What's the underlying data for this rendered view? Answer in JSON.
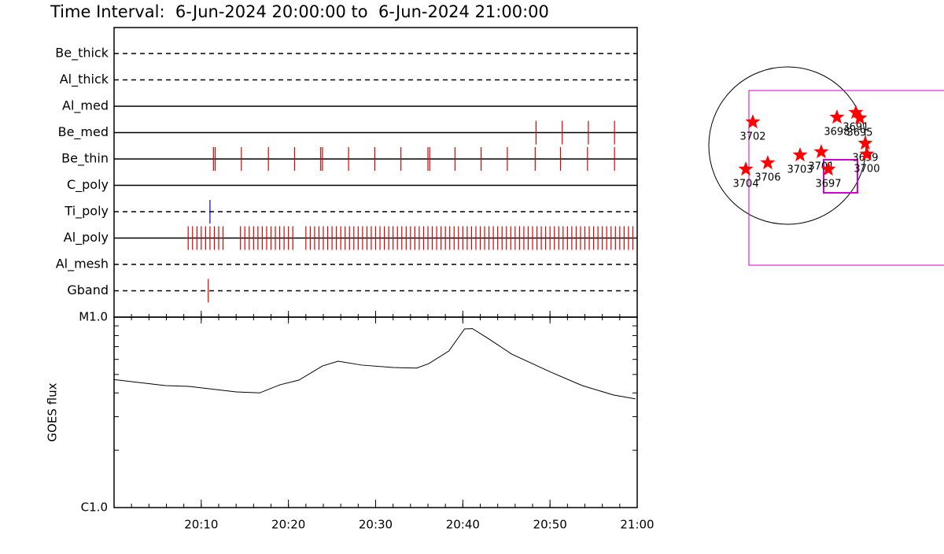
{
  "chart_data": [
    {
      "type": "event",
      "title": "Time Interval:  6-Jun-2024 20:00:00 to  6-Jun-2024 21:00:00",
      "xlim": [
        0,
        60
      ],
      "rows": [
        {
          "name": "Be_thick",
          "style": "dashed",
          "color": "#e00000",
          "events": []
        },
        {
          "name": "Al_thick",
          "style": "dashed",
          "color": "#e00000",
          "events": []
        },
        {
          "name": "Al_med",
          "style": "solid",
          "color": "#e00000",
          "events": []
        },
        {
          "name": "Be_med",
          "style": "solid",
          "color": "#e00000",
          "events": [
            48.4,
            51.4,
            54.4,
            57.4
          ]
        },
        {
          "name": "Be_thin",
          "style": "solid",
          "color": "#e00000",
          "events": [
            11.4,
            11.6,
            14.6,
            17.7,
            20.7,
            23.7,
            23.9,
            26.9,
            29.9,
            32.9,
            36.0,
            36.2,
            39.1,
            42.1,
            45.1,
            48.3,
            51.2,
            54.3,
            57.4
          ]
        },
        {
          "name": "C_poly",
          "style": "solid",
          "color": "#e00000",
          "events": []
        },
        {
          "name": "Ti_poly",
          "style": "dashed",
          "color": "#0000cc",
          "events": [
            11.0
          ]
        },
        {
          "name": "Al_poly",
          "style": "solid",
          "color": "#e00000",
          "events": [
            8.5,
            9,
            9.5,
            10,
            10.5,
            11,
            11.5,
            12,
            12.5,
            14.5,
            15,
            15.5,
            16,
            16.5,
            17,
            17.5,
            18,
            18.5,
            19,
            19.5,
            20,
            20.5,
            22,
            22.5,
            23,
            23.5,
            24,
            24.5,
            25,
            25.5,
            26,
            26.5,
            27,
            27.5,
            28,
            28.5,
            29,
            29.5,
            30,
            30.5,
            31,
            31.5,
            32,
            32.5,
            33,
            33.5,
            34,
            34.5,
            35,
            35.5,
            36,
            36.5,
            37,
            37.5,
            38,
            38.5,
            39,
            39.5,
            40,
            40.5,
            41,
            41.5,
            42,
            42.5,
            43,
            43.5,
            44,
            44.5,
            45,
            45.5,
            46,
            46.5,
            47,
            47.5,
            48,
            48.5,
            49,
            49.5,
            50,
            50.5,
            51,
            51.5,
            52,
            52.5,
            53,
            53.5,
            54,
            54.5,
            55,
            55.5,
            56,
            56.5,
            57,
            57.5,
            58,
            58.5,
            59,
            59.5
          ]
        },
        {
          "name": "Al_mesh",
          "style": "dashed",
          "color": "#e00000",
          "events": []
        },
        {
          "name": "Gband",
          "style": "dashed",
          "color": "#e00000",
          "events": [
            10.8
          ]
        }
      ]
    },
    {
      "type": "line",
      "ylabel": "GOES flux",
      "log_scale": true,
      "color": "#000000",
      "xlim": [
        0,
        60
      ],
      "xticks": [
        {
          "value": 10,
          "label": "20:10"
        },
        {
          "value": 20,
          "label": "20:20"
        },
        {
          "value": 30,
          "label": "20:30"
        },
        {
          "value": 40,
          "label": "20:40"
        },
        {
          "value": 50,
          "label": "20:50"
        },
        {
          "value": 60,
          "label": "21:00"
        }
      ],
      "ylim": [
        1e-06,
        1e-05
      ],
      "yticks": [
        {
          "value": 1e-06,
          "label": "C1.0"
        },
        {
          "value": 1e-05,
          "label": "M1.0"
        }
      ],
      "x": [
        0,
        5.9,
        8.6,
        14,
        16.7,
        19,
        21.2,
        23.9,
        25.7,
        28.4,
        32,
        34.7,
        36.1,
        38.4,
        40.2,
        41.1,
        42.9,
        45.6,
        50.1,
        53.7,
        57.3,
        59.8
      ],
      "values": [
        4.7e-06,
        4.37e-06,
        4.33e-06,
        4.05e-06,
        4e-06,
        4.41e-06,
        4.67e-06,
        5.54e-06,
        5.87e-06,
        5.6e-06,
        5.44e-06,
        5.4e-06,
        5.7e-06,
        6.64e-06,
        8.67e-06,
        8.7e-06,
        7.73e-06,
        6.4e-06,
        5.14e-06,
        4.37e-06,
        3.9e-06,
        3.72e-06
      ]
    },
    {
      "type": "scatter",
      "color": "#ff0000",
      "xlim": [
        -1000,
        1500
      ],
      "ylim": [
        -1000,
        1000
      ],
      "labels": [
        "3702",
        "3704",
        "3706",
        "3703",
        "3701",
        "3697",
        "3699",
        "3700",
        "3698",
        "3691",
        "3695"
      ],
      "x": [
        -418,
        -503,
        -238,
        152,
        408,
        494,
        940,
        959,
        598,
        826,
        874
      ],
      "values": [
        285,
        -285,
        -209,
        -114,
        -76,
        -285,
        28,
        -104,
        342,
        399,
        333
      ]
    }
  ]
}
